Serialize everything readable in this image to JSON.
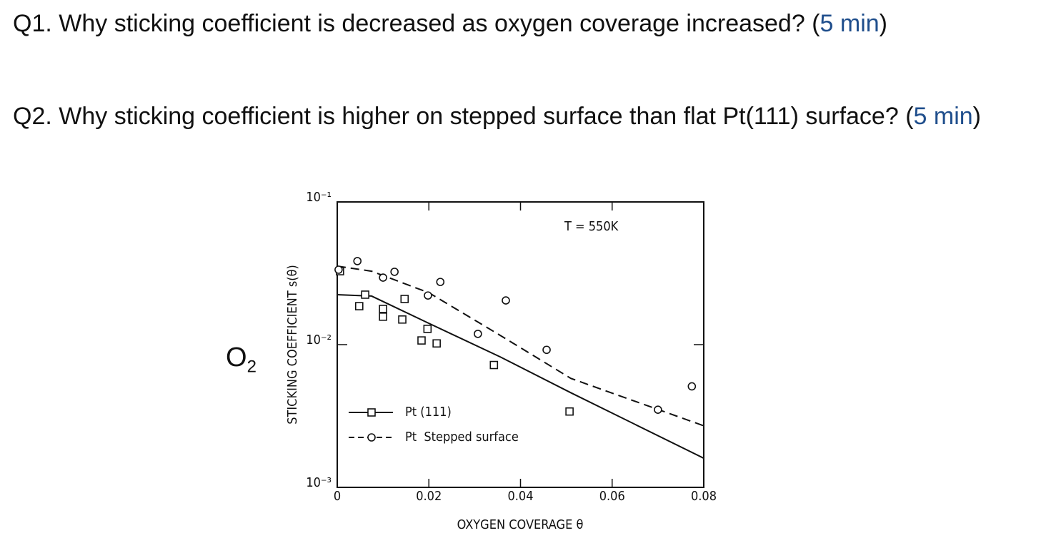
{
  "questions": [
    {
      "segments": [
        {
          "text": "Q1. Why sticking coefficient is decreased as oxygen coverage increased? "
        },
        {
          "text": "("
        },
        {
          "text": "5 min",
          "color": "#1f4e8c"
        },
        {
          "text": ")"
        }
      ]
    },
    {
      "segments": [
        {
          "text": "Q2. Why sticking coefficient is higher on stepped surface than flat Pt(111) surface? "
        },
        {
          "text": "("
        },
        {
          "text": "5 min",
          "color": "#1f4e8c"
        },
        {
          "text": ")"
        }
      ]
    }
  ],
  "side_label": {
    "text": "O",
    "subscript": "2"
  },
  "chart_data": {
    "type": "scatter",
    "annotation": "T = 550K",
    "x_label": "OXYGEN COVERAGE θ",
    "y_label": "STICKING COEFFICIENT s(θ)",
    "log_y": true,
    "xlim": [
      0,
      0.08
    ],
    "ylim": [
      0.001,
      0.1
    ],
    "xticks": [
      0,
      0.02,
      0.04,
      0.06,
      0.08
    ],
    "yticks": [
      {
        "value": 0.001,
        "label": "10⁻³"
      },
      {
        "value": 0.01,
        "label": "10⁻²"
      },
      {
        "value": 0.1,
        "label": "10⁻¹"
      }
    ],
    "series": [
      {
        "name": "Pt (111)",
        "marker": "square",
        "dashed": false,
        "color": "#111111",
        "x": [
          0.0006,
          0.0048,
          0.0061,
          0.01,
          0.01,
          0.0147,
          0.0142,
          0.0197,
          0.0184,
          0.0217,
          0.0342,
          0.0507
        ],
        "values": [
          0.0327,
          0.0186,
          0.0224,
          0.0178,
          0.0157,
          0.0209,
          0.015,
          0.0129,
          0.0107,
          0.0102,
          0.0072,
          0.0034
        ],
        "fit_x": [
          0,
          0.0075,
          0.02,
          0.0356,
          0.051,
          0.08
        ],
        "fit_values": [
          0.0224,
          0.0219,
          0.0141,
          0.0082,
          0.0046,
          0.0016
        ]
      },
      {
        "name": "Pt  Stepped surface",
        "marker": "circle",
        "dashed": true,
        "color": "#111111",
        "x": [
          0.0003,
          0.0044,
          0.01,
          0.0125,
          0.0198,
          0.0225,
          0.0307,
          0.0368,
          0.0457,
          0.07,
          0.0774
        ],
        "values": [
          0.0335,
          0.0385,
          0.0295,
          0.0324,
          0.0221,
          0.0275,
          0.0119,
          0.0204,
          0.0092,
          0.0035,
          0.0051
        ],
        "fit_x": [
          0,
          0.0075,
          0.02,
          0.0356,
          0.051,
          0.08
        ],
        "fit_values": [
          0.0355,
          0.0327,
          0.0231,
          0.0116,
          0.0058,
          0.0027
        ]
      }
    ]
  }
}
